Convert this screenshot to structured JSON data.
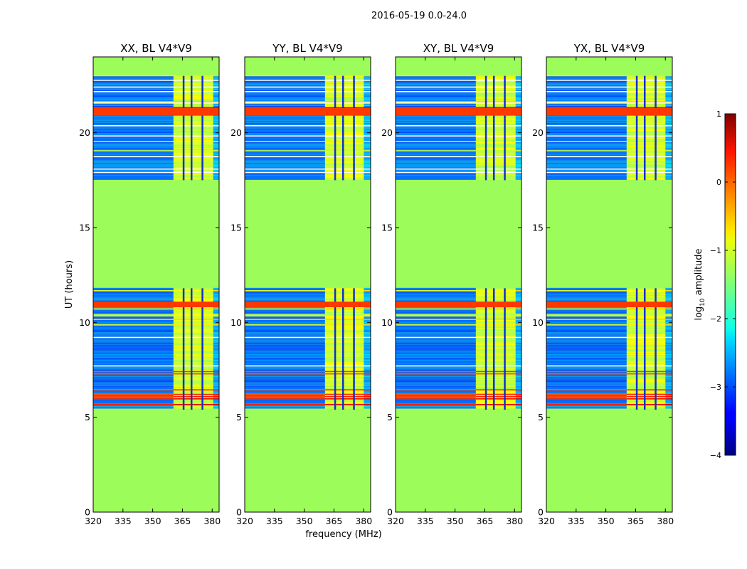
{
  "chart_data": {
    "type": "heatmap",
    "suptitle": "2016-05-19 0.0-24.0",
    "xlabel": "frequency (MHz)",
    "ylabel": "UT (hours)",
    "xlim": [
      320,
      383.5
    ],
    "ylim": [
      0,
      24
    ],
    "xticks": [
      320,
      335,
      350,
      365,
      380
    ],
    "yticks": [
      0,
      5,
      10,
      15,
      20
    ],
    "colorbar": {
      "label": "log10 amplitude",
      "label_base": "log",
      "label_sub": "10",
      "label_rest": " amplitude",
      "range": [
        -4,
        1
      ],
      "ticks": [
        -4,
        -3,
        -2,
        -1,
        0,
        1
      ],
      "colormap": "jet"
    },
    "flagged_value": -1.0,
    "flagged_color": "#9cfc5a",
    "data_rows_ut": [
      [
        5.4,
        11.8
      ],
      [
        17.5,
        23.0
      ]
    ],
    "saturated_rows_ut": [
      [
        10.8,
        11.1
      ],
      [
        20.9,
        21.3
      ]
    ],
    "rfi_band_mhz": [
      360.5,
      380.5
    ],
    "rfi_channels_mhz": [
      365.5,
      369.5,
      375.0
    ],
    "panels": [
      {
        "title": "XX, BL V4*V9",
        "rfi_start_mhz": 360.5,
        "rfi_end_mhz": 380.5
      },
      {
        "title": "YY, BL V4*V9",
        "rfi_start_mhz": 360.5,
        "rfi_end_mhz": 380.0
      },
      {
        "title": "XY, BL V4*V9",
        "rfi_start_mhz": 360.5,
        "rfi_end_mhz": 380.5
      },
      {
        "title": "YX, BL V4*V9",
        "rfi_start_mhz": 360.5,
        "rfi_end_mhz": 380.0
      }
    ]
  }
}
